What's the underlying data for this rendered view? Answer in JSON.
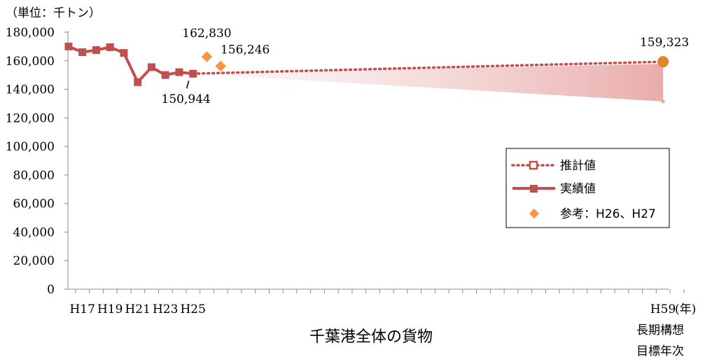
{
  "chart_data": {
    "type": "line",
    "title": "千葉港全体の貨物",
    "unit_label": "（単位：千トン）",
    "ylim": [
      0,
      180000
    ],
    "y_ticks": [
      "0",
      "20,000",
      "40,000",
      "60,000",
      "80,000",
      "100,000",
      "120,000",
      "140,000",
      "160,000",
      "180,000"
    ],
    "x_start_year": 16,
    "x_end_year": 59,
    "x_tick_labels": [
      {
        "year": 17,
        "label": "H17"
      },
      {
        "year": 19,
        "label": "H19"
      },
      {
        "year": 21,
        "label": "H21"
      },
      {
        "year": 23,
        "label": "H23"
      },
      {
        "year": 25,
        "label": "H25"
      },
      {
        "year": 59,
        "label": "H59"
      }
    ],
    "x_unit": "(年)",
    "x_end_note": [
      "長期構想",
      "目標年次"
    ],
    "series": [
      {
        "name": "実績値",
        "style": "solid-square",
        "color": "#c0504d",
        "points": [
          {
            "x": 16,
            "y": 170000
          },
          {
            "x": 17,
            "y": 166000
          },
          {
            "x": 18,
            "y": 167500
          },
          {
            "x": 19,
            "y": 169500
          },
          {
            "x": 20,
            "y": 165500
          },
          {
            "x": 21,
            "y": 145000
          },
          {
            "x": 22,
            "y": 155500
          },
          {
            "x": 23,
            "y": 150000
          },
          {
            "x": 24,
            "y": 152000
          },
          {
            "x": 25,
            "y": 150944
          }
        ]
      },
      {
        "name": "推計値",
        "style": "dotted-hollow-square",
        "color": "#c0504d",
        "points": [
          {
            "x": 25,
            "y": 150944
          },
          {
            "x": 59,
            "y": 159323
          }
        ]
      },
      {
        "name": "参考：H26、H27",
        "style": "diamond",
        "color": "#f79646",
        "points": [
          {
            "x": 26,
            "y": 162830
          },
          {
            "x": 27,
            "y": 156246
          }
        ]
      }
    ],
    "range_band": {
      "color": "#e6a3a1",
      "from": {
        "x": 25,
        "y": 150944
      },
      "to_upper": {
        "x": 59,
        "y": 159323
      },
      "to_lower": {
        "x": 59,
        "y": 131500
      }
    },
    "target_marker": {
      "x": 59,
      "y": 159323,
      "color": "#e0862f"
    },
    "data_labels": [
      {
        "text": "162,830",
        "anchor_x": 26,
        "anchor_y": 162830
      },
      {
        "text": "156,246",
        "anchor_x": 27,
        "anchor_y": 156246
      },
      {
        "text": "150,944",
        "anchor_x": 25,
        "anchor_y": 150944
      },
      {
        "text": "159,323",
        "anchor_x": 59,
        "anchor_y": 159323
      }
    ],
    "legend": {
      "position": "right",
      "items": [
        "推計値",
        "実績値",
        "参考：H26、H27"
      ]
    }
  }
}
